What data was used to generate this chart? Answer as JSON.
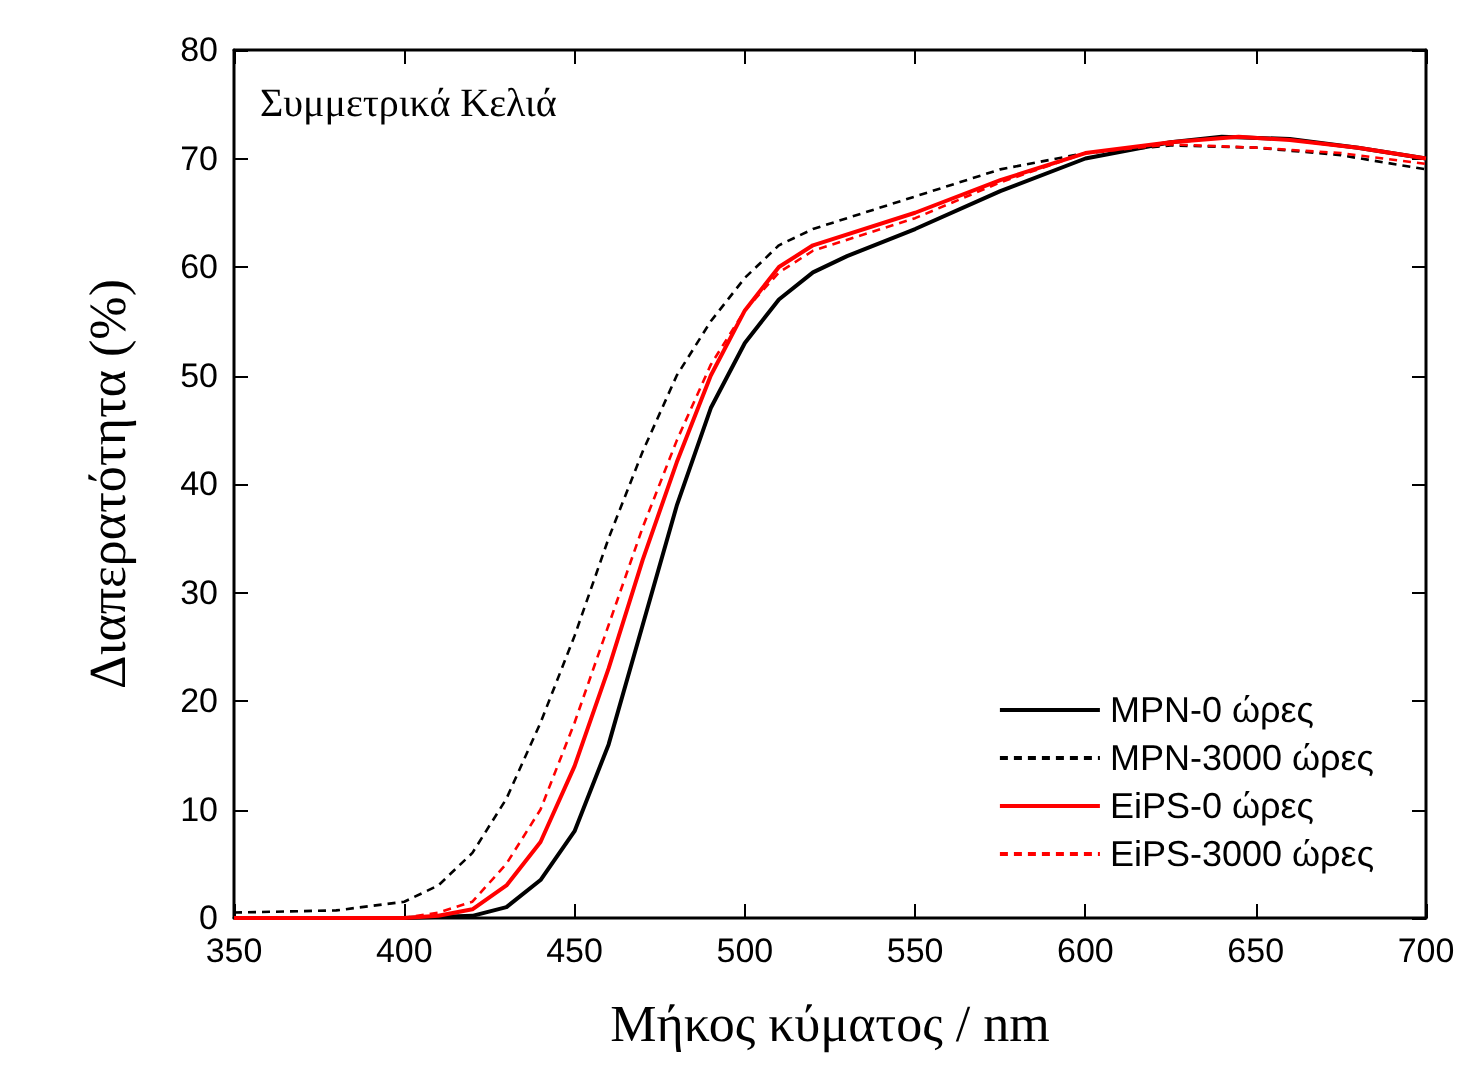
{
  "chart_data": {
    "type": "line",
    "xlabel": "Μήκος κύματος / nm",
    "ylabel": "Διαπερατότητα (%)",
    "annotations": [
      "Συμμετρικά Κελιά"
    ],
    "xlim": [
      350,
      700
    ],
    "xticks": [
      350,
      400,
      450,
      500,
      550,
      600,
      650,
      700
    ],
    "ylim": [
      0,
      80
    ],
    "yticks": [
      0,
      10,
      20,
      30,
      40,
      50,
      60,
      70,
      80
    ],
    "grid": false,
    "legend": "bottom right",
    "marker": "none",
    "series": [
      {
        "name": "MPN-0 ώρες",
        "color": "#000000",
        "line_style": "solid",
        "x": [
          350,
          400,
          420,
          430,
          440,
          450,
          460,
          470,
          480,
          490,
          500,
          510,
          520,
          530,
          550,
          575,
          600,
          625,
          640,
          660,
          680,
          700
        ],
        "values": [
          0,
          0,
          0.2,
          1,
          3.5,
          8,
          16,
          27,
          38,
          47,
          53,
          57,
          59.5,
          61,
          63.5,
          67,
          70,
          71.5,
          72,
          71.8,
          71,
          70
        ]
      },
      {
        "name": "MPN-3000 ώρες",
        "color": "#000000",
        "line_style": "dashed",
        "x": [
          350,
          380,
          400,
          410,
          420,
          430,
          440,
          450,
          460,
          470,
          480,
          490,
          500,
          510,
          520,
          550,
          575,
          600,
          625,
          650,
          675,
          700
        ],
        "values": [
          0.5,
          0.7,
          1.5,
          3,
          6,
          11,
          18,
          26,
          35,
          43,
          50,
          55,
          59,
          62,
          63.5,
          66.5,
          69,
          70.5,
          71.2,
          71,
          70.3,
          69
        ]
      },
      {
        "name": "EiPS-0 ώρες",
        "color": "#ff0000",
        "line_style": "solid",
        "x": [
          350,
          400,
          410,
          420,
          430,
          440,
          450,
          460,
          470,
          480,
          490,
          500,
          510,
          520,
          550,
          575,
          600,
          625,
          645,
          660,
          680,
          700
        ],
        "values": [
          0,
          0,
          0.2,
          0.8,
          3,
          7,
          14,
          23,
          33,
          42,
          50,
          56,
          60,
          62,
          65,
          68,
          70.5,
          71.5,
          72,
          71.7,
          71,
          70
        ]
      },
      {
        "name": "EiPS-3000 ώρες",
        "color": "#ff0000",
        "line_style": "dashed",
        "x": [
          350,
          400,
          410,
          420,
          430,
          440,
          450,
          460,
          470,
          480,
          490,
          500,
          510,
          520,
          550,
          575,
          600,
          625,
          650,
          675,
          700
        ],
        "values": [
          0,
          0,
          0.5,
          1.5,
          5,
          10,
          18,
          27,
          36,
          44,
          51,
          56,
          59.5,
          61.5,
          64.5,
          67.8,
          70.5,
          71.3,
          71,
          70.5,
          69.5
        ]
      }
    ]
  }
}
